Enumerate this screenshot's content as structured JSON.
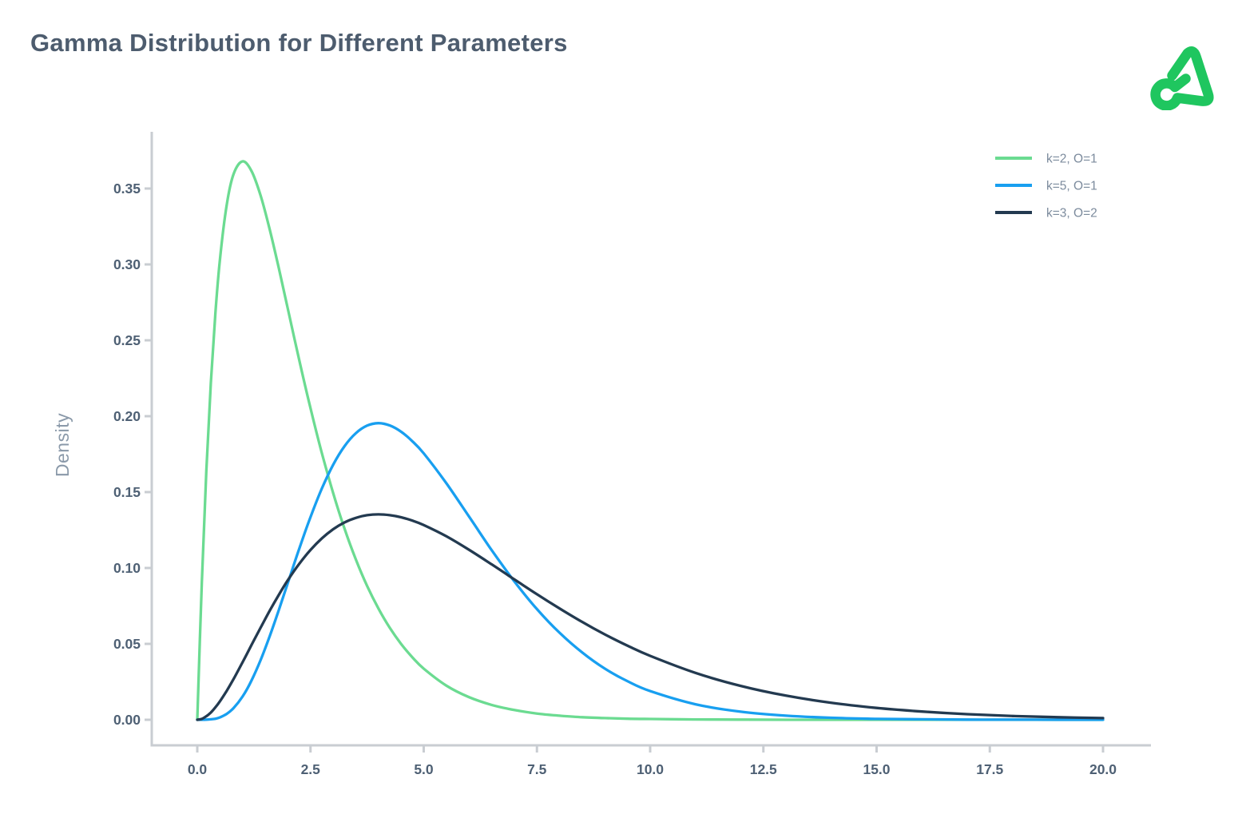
{
  "header": {
    "title": "Gamma Distribution for Different Parameters",
    "logo_color": "#1fc65f"
  },
  "chart_data": {
    "type": "line",
    "title": "Gamma Distribution for Different Parameters",
    "xlabel": "",
    "ylabel": "Density",
    "xlim": [
      0,
      20
    ],
    "ylim": [
      0,
      0.3875
    ],
    "grid": false,
    "legend_position": "top-right",
    "x_ticks": [
      0,
      2.5,
      5,
      7.5,
      10,
      12.5,
      15,
      17.5,
      20
    ],
    "x_tick_labels": [
      "0.0",
      "2.5",
      "5.0",
      "7.5",
      "10.0",
      "12.5",
      "15.0",
      "17.5",
      "20.0"
    ],
    "y_ticks": [
      0,
      0.05,
      0.1,
      0.15,
      0.2,
      0.25,
      0.3,
      0.35
    ],
    "y_tick_labels": [
      "0.00",
      "0.05",
      "0.10",
      "0.15",
      "0.20",
      "0.25",
      "0.30",
      "0.35"
    ],
    "colors": {
      "axis": "#c9cdd2",
      "tick_label": "#4e6074",
      "axis_title": "#8a99a9",
      "legend_label": "#7c8b9d"
    },
    "x": [
      0,
      0.1,
      0.2,
      0.3,
      0.4,
      0.5,
      0.65,
      0.8,
      1,
      1.2,
      1.4,
      1.6,
      1.8,
      2,
      2.25,
      2.5,
      2.75,
      3,
      3.25,
      3.5,
      3.75,
      4,
      4.25,
      4.5,
      4.75,
      5,
      5.5,
      6,
      6.5,
      7,
      7.5,
      8,
      8.5,
      9,
      9.5,
      10,
      11,
      12,
      13,
      14,
      15,
      16,
      17,
      18,
      19,
      20
    ],
    "series": [
      {
        "name": "k=2, O=1",
        "k": 2,
        "theta": 1,
        "color": "#6bdb91",
        "values": [
          0,
          0.0905,
          0.1637,
          0.2222,
          0.2681,
          0.3033,
          0.3393,
          0.3595,
          0.3679,
          0.3614,
          0.3452,
          0.323,
          0.2975,
          0.2707,
          0.2371,
          0.2052,
          0.1758,
          0.1494,
          0.126,
          0.1057,
          0.0882,
          0.0733,
          0.0606,
          0.05,
          0.0411,
          0.0337,
          0.0225,
          0.0149,
          0.0098,
          0.0064,
          0.0041,
          0.0027,
          0.0017,
          0.0011,
          0.0007,
          0.0005,
          0.0002,
          0.0001,
          0,
          0,
          0,
          0,
          0,
          0,
          0,
          0
        ]
      },
      {
        "name": "k=5, O=1",
        "k": 5,
        "theta": 1,
        "color": "#189ff0",
        "values": [
          0,
          0,
          0.0001,
          0.0003,
          0.0007,
          0.0016,
          0.0039,
          0.0077,
          0.0153,
          0.026,
          0.0395,
          0.0551,
          0.0723,
          0.0902,
          0.1126,
          0.1336,
          0.1523,
          0.168,
          0.1802,
          0.1888,
          0.1938,
          0.1954,
          0.1939,
          0.1898,
          0.1835,
          0.1755,
          0.1558,
          0.1339,
          0.1118,
          0.0912,
          0.0729,
          0.0573,
          0.0443,
          0.0337,
          0.0254,
          0.0189,
          0.0102,
          0.0053,
          0.0027,
          0.0013,
          0.0006,
          0.0003,
          0.0001,
          0.0001,
          0,
          0
        ]
      },
      {
        "name": "k=3, O=2",
        "k": 3,
        "theta": 2,
        "color": "#233a50",
        "values": [
          0,
          0.0006,
          0.0023,
          0.0048,
          0.0082,
          0.0122,
          0.0191,
          0.0268,
          0.0379,
          0.0494,
          0.0608,
          0.0719,
          0.0823,
          0.092,
          0.1027,
          0.1119,
          0.1195,
          0.1255,
          0.13,
          0.133,
          0.1348,
          0.1353,
          0.1348,
          0.1334,
          0.1312,
          0.1283,
          0.1209,
          0.112,
          0.1024,
          0.0925,
          0.0827,
          0.0733,
          0.0644,
          0.0562,
          0.0488,
          0.0421,
          0.0309,
          0.0223,
          0.0159,
          0.0112,
          0.0078,
          0.0054,
          0.0037,
          0.0025,
          0.0017,
          0.0011
        ]
      }
    ]
  }
}
